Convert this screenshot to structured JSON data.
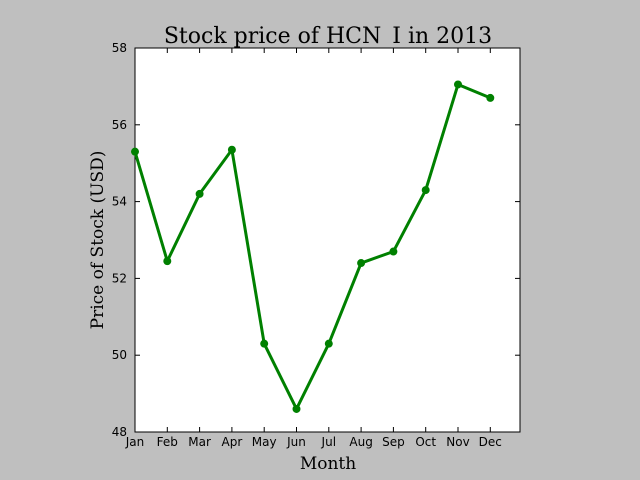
{
  "chart_data": {
    "type": "line",
    "title": "Stock price of HCN_I in 2013",
    "xlabel": "Month",
    "ylabel": "Price of Stock (USD)",
    "categories": [
      "Jan",
      "Feb",
      "Mar",
      "Apr",
      "May",
      "Jun",
      "Jul",
      "Aug",
      "Sep",
      "Oct",
      "Nov",
      "Dec"
    ],
    "series": [
      {
        "values": [
          55.3,
          52.45,
          54.2,
          55.35,
          50.3,
          48.6,
          50.3,
          52.4,
          52.7,
          54.3,
          57.05,
          56.7
        ]
      }
    ],
    "ylim": [
      48,
      58
    ],
    "yticks": [
      "48",
      "50",
      "52",
      "54",
      "56",
      "58"
    ],
    "grid": false,
    "colors": {
      "line": "#008000",
      "background": "#bfbfbf",
      "plot_area": "#ffffff"
    }
  }
}
